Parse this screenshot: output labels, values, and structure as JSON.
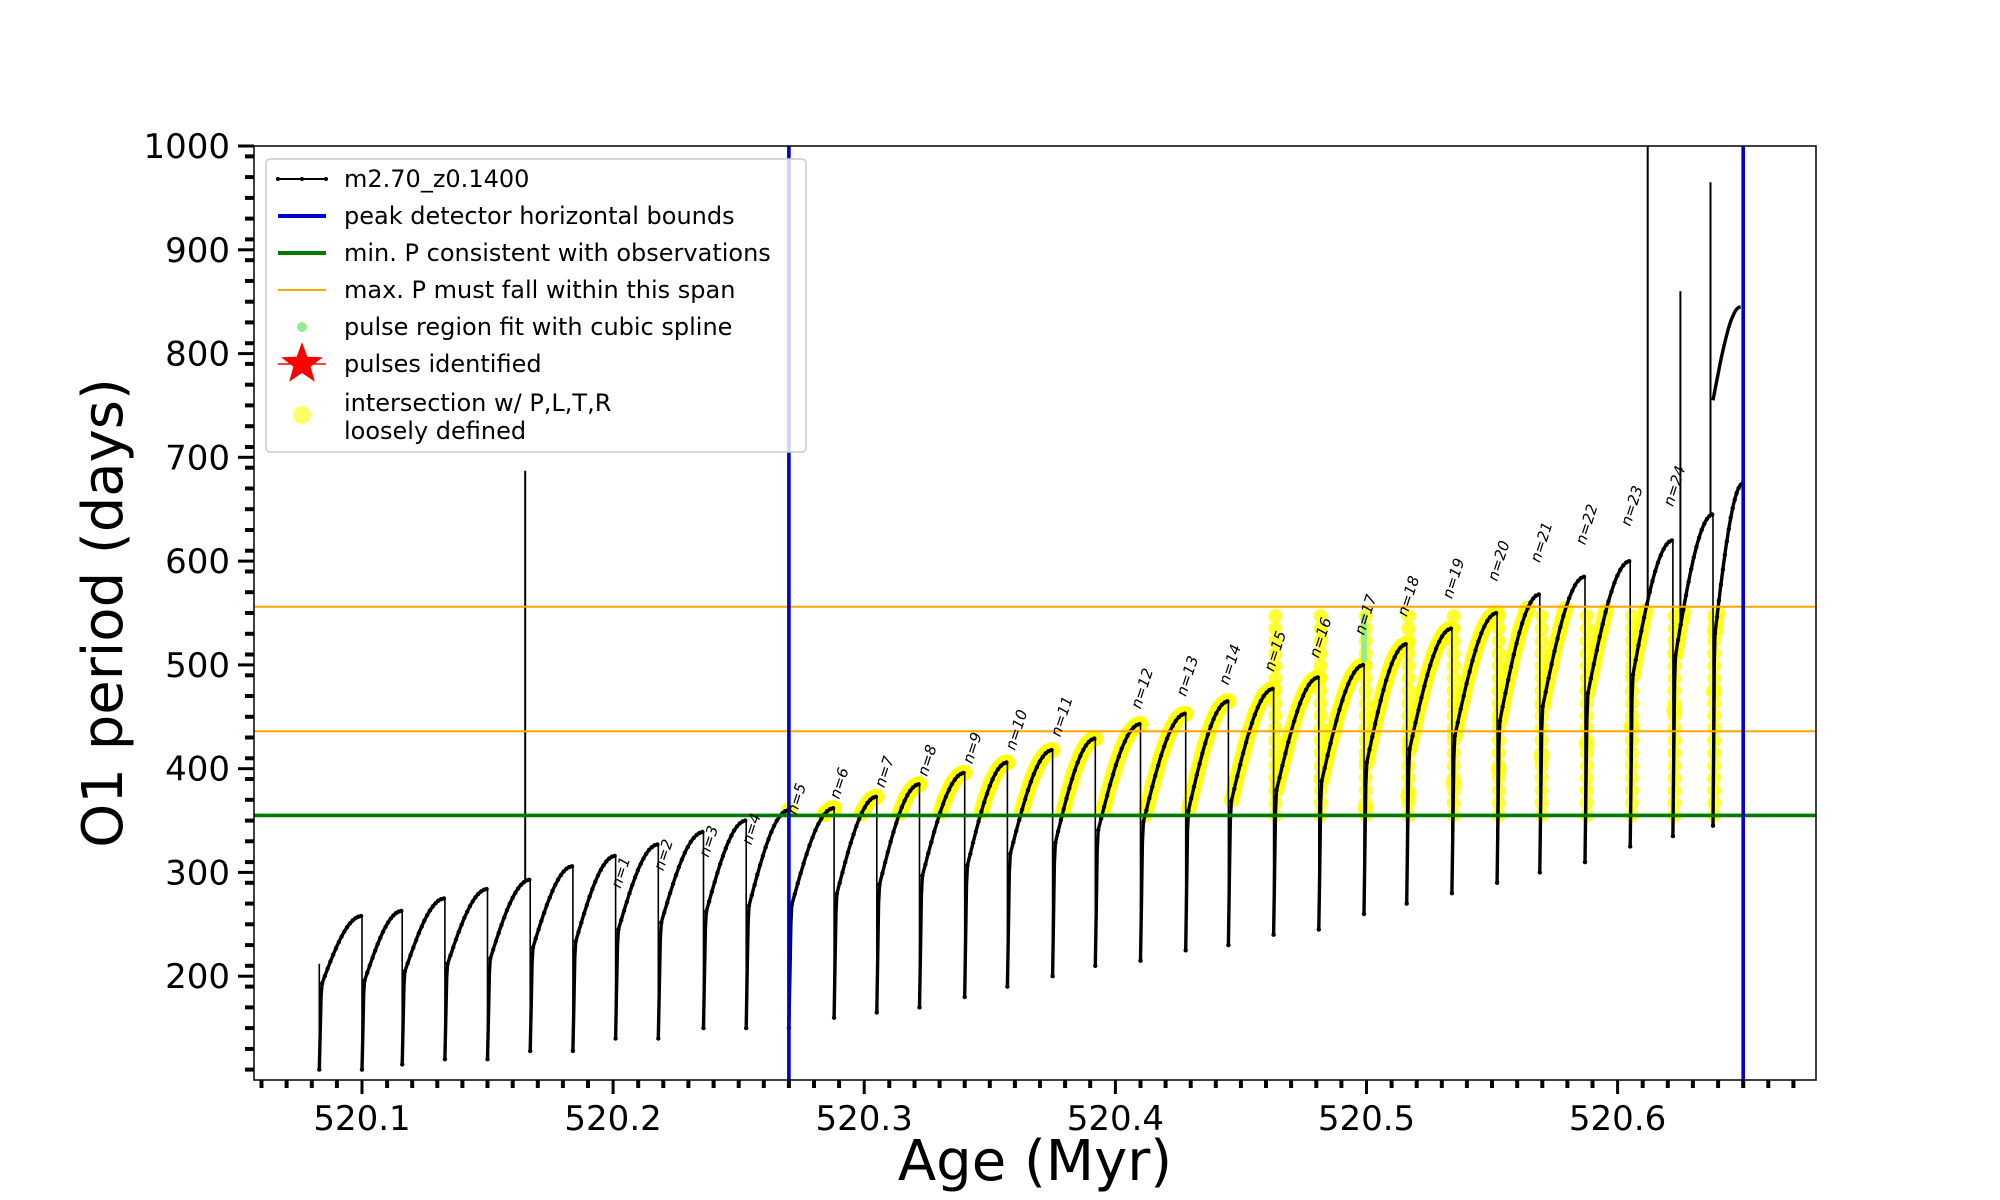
{
  "chart_data": {
    "type": "line",
    "title": "",
    "xlabel": "Age (Myr)",
    "ylabel": "O1 period (days)",
    "xlim": [
      520.057,
      520.679
    ],
    "ylim": [
      100,
      1000
    ],
    "x_ticks": [
      520.1,
      520.2,
      520.3,
      520.4,
      520.5,
      520.6
    ],
    "x_tick_labels": [
      "520.1",
      "520.2",
      "520.3",
      "520.4",
      "520.5",
      "520.6"
    ],
    "y_ticks": [
      200,
      300,
      400,
      500,
      600,
      700,
      800,
      900,
      1000
    ],
    "y_tick_labels": [
      "200",
      "300",
      "400",
      "500",
      "600",
      "700",
      "800",
      "900",
      "1000"
    ],
    "grid": false,
    "legend_position": "upper-left",
    "series": [
      {
        "name": "m2.70_z0.1400",
        "color": "#000000",
        "style": "line-dots",
        "cycles": [
          {
            "start": 520.083,
            "end": 520.1,
            "min": 110,
            "max": 258
          },
          {
            "start": 520.1,
            "end": 520.116,
            "min": 110,
            "max": 263
          },
          {
            "start": 520.116,
            "end": 520.133,
            "min": 115,
            "max": 275
          },
          {
            "start": 520.133,
            "end": 520.15,
            "min": 120,
            "max": 284
          },
          {
            "start": 520.15,
            "end": 520.167,
            "min": 120,
            "max": 293
          },
          {
            "start": 520.167,
            "end": 520.184,
            "min": 128,
            "max": 306
          },
          {
            "start": 520.184,
            "end": 520.201,
            "min": 128,
            "max": 316
          },
          {
            "start": 520.201,
            "end": 520.218,
            "min": 140,
            "max": 327
          },
          {
            "start": 520.218,
            "end": 520.236,
            "min": 140,
            "max": 339
          },
          {
            "start": 520.236,
            "end": 520.253,
            "min": 150,
            "max": 350
          },
          {
            "start": 520.253,
            "end": 520.27,
            "min": 150,
            "max": 360
          },
          {
            "start": 520.27,
            "end": 520.288,
            "min": 150,
            "max": 362
          },
          {
            "start": 520.288,
            "end": 520.305,
            "min": 160,
            "max": 373
          },
          {
            "start": 520.305,
            "end": 520.322,
            "min": 165,
            "max": 385
          },
          {
            "start": 520.322,
            "end": 520.34,
            "min": 170,
            "max": 396
          },
          {
            "start": 520.34,
            "end": 520.357,
            "min": 180,
            "max": 406
          },
          {
            "start": 520.357,
            "end": 520.375,
            "min": 190,
            "max": 418
          },
          {
            "start": 520.375,
            "end": 520.392,
            "min": 200,
            "max": 429
          },
          {
            "start": 520.392,
            "end": 520.41,
            "min": 210,
            "max": 443
          },
          {
            "start": 520.41,
            "end": 520.428,
            "min": 215,
            "max": 453
          },
          {
            "start": 520.428,
            "end": 520.445,
            "min": 225,
            "max": 465
          },
          {
            "start": 520.445,
            "end": 520.463,
            "min": 230,
            "max": 477
          },
          {
            "start": 520.463,
            "end": 520.481,
            "min": 240,
            "max": 488
          },
          {
            "start": 520.481,
            "end": 520.499,
            "min": 245,
            "max": 500
          },
          {
            "start": 520.499,
            "end": 520.516,
            "min": 260,
            "max": 520
          },
          {
            "start": 520.516,
            "end": 520.534,
            "min": 270,
            "max": 535
          },
          {
            "start": 520.534,
            "end": 520.552,
            "min": 280,
            "max": 550
          },
          {
            "start": 520.552,
            "end": 520.569,
            "min": 290,
            "max": 568
          },
          {
            "start": 520.569,
            "end": 520.587,
            "min": 300,
            "max": 585
          },
          {
            "start": 520.587,
            "end": 520.605,
            "min": 310,
            "max": 600
          },
          {
            "start": 520.605,
            "end": 520.622,
            "min": 325,
            "max": 620
          },
          {
            "start": 520.622,
            "end": 520.638,
            "min": 335,
            "max": 645
          },
          {
            "start": 520.638,
            "end": 520.65,
            "min": 345,
            "max": 675
          }
        ],
        "spikes": [
          {
            "x": 520.165,
            "top": 687
          },
          {
            "x": 520.612,
            "top": 1000
          },
          {
            "x": 520.625,
            "top": 860
          },
          {
            "x": 520.637,
            "top": 965
          },
          {
            "x": 520.65,
            "top": 1000
          }
        ]
      },
      {
        "name": "peak detector horizontal bounds",
        "color": "#0000cc",
        "x": [
          520.27,
          520.65
        ]
      },
      {
        "name": "min. P consistent with observations",
        "color": "#007a00",
        "y": [
          355
        ]
      },
      {
        "name": "max. P must fall within this span",
        "color": "#ffa500",
        "y": [
          436,
          556
        ]
      },
      {
        "name": "pulse region fit with cubic spline",
        "color": "#90ee90"
      },
      {
        "name": "pulses identified",
        "color": "#ff0000"
      },
      {
        "name": "intersection w/ P,L,T,R\nloosely defined",
        "color": "#ffff00"
      }
    ],
    "pulse_labels": [
      {
        "text": "n=1",
        "x": 520.203,
        "y": 284
      },
      {
        "text": "n=2",
        "x": 520.22,
        "y": 301
      },
      {
        "text": "n=3",
        "x": 520.238,
        "y": 314
      },
      {
        "text": "n=4",
        "x": 520.255,
        "y": 326
      },
      {
        "text": "n=5",
        "x": 520.273,
        "y": 355
      },
      {
        "text": "n=6",
        "x": 520.29,
        "y": 370
      },
      {
        "text": "n=7",
        "x": 520.308,
        "y": 381
      },
      {
        "text": "n=8",
        "x": 520.325,
        "y": 392
      },
      {
        "text": "n=9",
        "x": 520.343,
        "y": 404
      },
      {
        "text": "n=10",
        "x": 520.36,
        "y": 417
      },
      {
        "text": "n=11",
        "x": 520.378,
        "y": 430
      },
      {
        "text": "n=12",
        "x": 520.41,
        "y": 457
      },
      {
        "text": "n=13",
        "x": 520.428,
        "y": 469
      },
      {
        "text": "n=14",
        "x": 520.445,
        "y": 480
      },
      {
        "text": "n=15",
        "x": 520.463,
        "y": 493
      },
      {
        "text": "n=16",
        "x": 520.481,
        "y": 506
      },
      {
        "text": "n=17",
        "x": 520.499,
        "y": 528
      },
      {
        "text": "n=18",
        "x": 520.516,
        "y": 546
      },
      {
        "text": "n=19",
        "x": 520.534,
        "y": 563
      },
      {
        "text": "n=20",
        "x": 520.552,
        "y": 580
      },
      {
        "text": "n=21",
        "x": 520.569,
        "y": 598
      },
      {
        "text": "n=22",
        "x": 520.587,
        "y": 615
      },
      {
        "text": "n=23",
        "x": 520.605,
        "y": 633
      },
      {
        "text": "n=24",
        "x": 520.622,
        "y": 652
      }
    ]
  }
}
